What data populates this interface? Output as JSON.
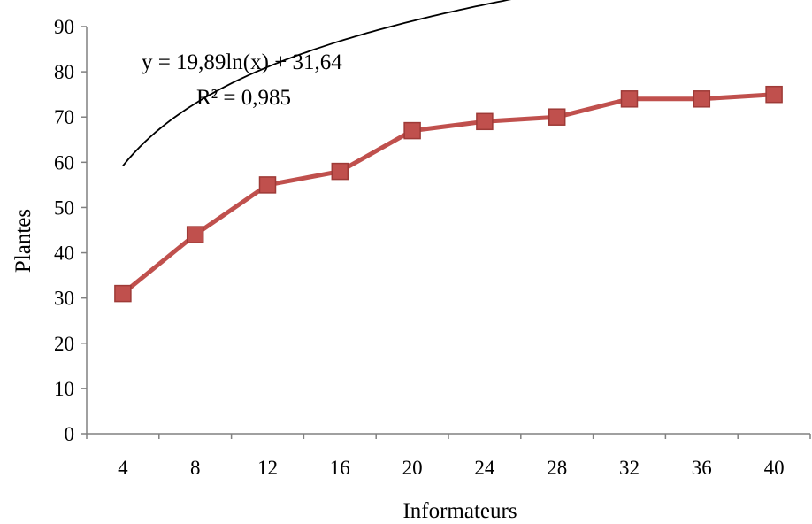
{
  "chart_data": {
    "type": "line",
    "title": "",
    "xlabel": "Informateurs",
    "ylabel": "Plantes",
    "categories": [
      "4",
      "8",
      "12",
      "16",
      "20",
      "24",
      "28",
      "32",
      "36",
      "40"
    ],
    "x": [
      4,
      8,
      12,
      16,
      20,
      24,
      28,
      32,
      36,
      40
    ],
    "series": [
      {
        "name": "",
        "values": [
          31,
          44,
          55,
          58,
          67,
          69,
          70,
          74,
          74,
          75
        ],
        "color": "#c0504d",
        "marker": "square"
      }
    ],
    "trendline": {
      "type": "logarithmic",
      "equation": "y = 19,89ln(x) + 31,64",
      "r_squared": "R² = 0,985",
      "coef_a": 19.89,
      "coef_b": 31.64,
      "color": "#000000"
    },
    "ylim": [
      0,
      90
    ],
    "yticks": [
      0,
      10,
      20,
      30,
      40,
      50,
      60,
      70,
      80,
      90
    ],
    "grid": false,
    "legend": "none"
  }
}
